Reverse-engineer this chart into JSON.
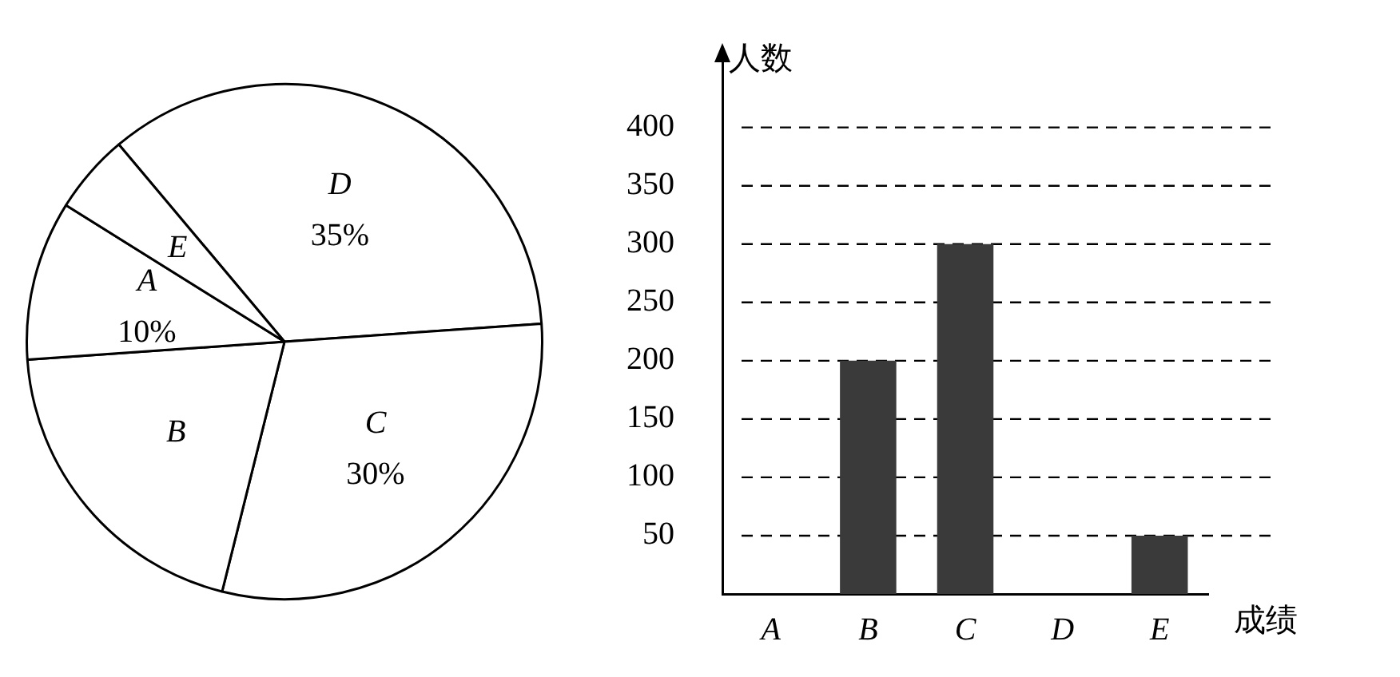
{
  "chart_data": [
    {
      "type": "pie",
      "categories": [
        "D",
        "C",
        "B",
        "A",
        "E"
      ],
      "values": [
        35,
        30,
        20,
        10,
        5
      ],
      "colors": [
        "#ffffff",
        "#ffffff",
        "#ffffff",
        "#ffffff",
        "#ffffff"
      ],
      "value_labels": [
        "35%",
        "30%",
        null,
        "10%",
        null
      ]
    },
    {
      "type": "bar",
      "categories": [
        "A",
        "B",
        "C",
        "D",
        "E"
      ],
      "values": [
        null,
        200,
        300,
        null,
        50
      ],
      "color": "#3a3a3a",
      "ylim": [
        0,
        460
      ],
      "yticks": [
        50,
        100,
        150,
        200,
        250,
        300,
        350,
        400
      ],
      "grid": "y",
      "xlabel": "成绩",
      "ylabel": "人数"
    }
  ]
}
